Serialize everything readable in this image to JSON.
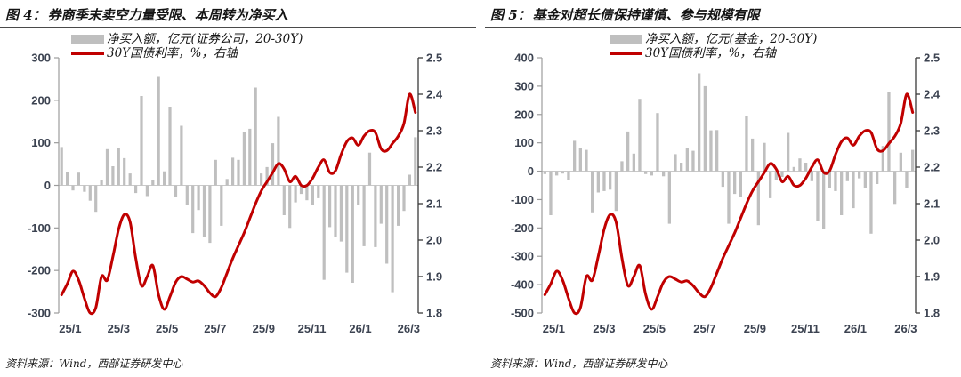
{
  "page": {
    "background": "#ffffff"
  },
  "chart_data": [
    {
      "id": "figure-4",
      "type": "bar+line",
      "title_prefix": "图 4：",
      "title": "券商季末卖空力量受限、本周转为净买入",
      "source": "资料来源：Wind，西部证券研发中心",
      "colors": {
        "bar": "#bfbfbf",
        "line": "#c00000",
        "tick_label": "#3c4351"
      },
      "legend": {
        "bar_label": "净买入额，亿元(证券公司，20-30Y)",
        "line_label": "30Y国债利率，%，右轴"
      },
      "x_tick_labels": [
        "25/1",
        "25/3",
        "25/5",
        "25/7",
        "25/9",
        "25/11",
        "26/1",
        "26/3"
      ],
      "left_axis": {
        "min": -300,
        "max": 300,
        "tick_labels": [
          "300",
          "200",
          "100",
          "0",
          "-100",
          "-200",
          "-300"
        ],
        "tick_values": [
          300,
          200,
          100,
          0,
          -100,
          -200,
          -300
        ]
      },
      "right_axis": {
        "min": 1.8,
        "max": 2.5,
        "tick_labels": [
          "2.5",
          "2.4",
          "2.3",
          "2.2",
          "2.1",
          "2.0",
          "1.9",
          "1.8"
        ],
        "tick_values": [
          2.5,
          2.4,
          2.3,
          2.2,
          2.1,
          2.0,
          1.9,
          1.8
        ]
      },
      "series": [
        {
          "name": "净买入额，亿元(证券公司，20-30Y)",
          "type": "bar",
          "axis": "left",
          "values": [
            90,
            31,
            -12,
            30,
            -15,
            -36,
            -62,
            13,
            85,
            45,
            88,
            64,
            28,
            -18,
            210,
            -25,
            12,
            255,
            33,
            185,
            -28,
            140,
            -45,
            -112,
            -58,
            -122,
            -135,
            60,
            -95,
            15,
            65,
            60,
            126,
            133,
            230,
            28,
            43,
            99,
            161,
            -70,
            -100,
            -40,
            -20,
            -35,
            -45,
            -30,
            -222,
            -98,
            -122,
            -132,
            -205,
            -229,
            -45,
            -143,
            77,
            -145,
            -90,
            -184,
            -251,
            -95,
            -60,
            25,
            113
          ]
        },
        {
          "name": "30Y国债利率，%，右轴",
          "type": "line",
          "axis": "right",
          "values": [
            1.85,
            1.88,
            1.915,
            1.89,
            1.84,
            1.8,
            1.815,
            1.9,
            1.89,
            1.955,
            2.03,
            2.07,
            2.05,
            1.95,
            1.875,
            1.9,
            1.93,
            1.85,
            1.81,
            1.845,
            1.885,
            1.9,
            1.893,
            1.885,
            1.888,
            1.875,
            1.855,
            1.845,
            1.87,
            1.91,
            1.95,
            1.985,
            2.02,
            2.06,
            2.1,
            2.135,
            2.16,
            2.185,
            2.21,
            2.195,
            2.16,
            2.175,
            2.15,
            2.15,
            2.17,
            2.2,
            2.22,
            2.185,
            2.19,
            2.235,
            2.27,
            2.28,
            2.26,
            2.285,
            2.3,
            2.295,
            2.25,
            2.245,
            2.265,
            2.285,
            2.32,
            2.4,
            2.35
          ]
        }
      ]
    },
    {
      "id": "figure-5",
      "type": "bar+line",
      "title_prefix": "图 5：",
      "title": "基金对超长债保持谨慎、参与规模有限",
      "source": "资料来源：Wind，西部证券研发中心",
      "colors": {
        "bar": "#bfbfbf",
        "line": "#c00000",
        "tick_label": "#3c4351"
      },
      "legend": {
        "bar_label": "净买入额，亿元(基金，20-30Y)",
        "line_label": "30Y国债利率，%，右轴"
      },
      "x_tick_labels": [
        "25/1",
        "25/3",
        "25/5",
        "25/7",
        "25/9",
        "25/11",
        "26/1",
        "26/3"
      ],
      "left_axis": {
        "min": -500,
        "max": 400,
        "tick_labels": [
          "400",
          "300",
          "200",
          "100",
          "0",
          "-100",
          "-200",
          "-300",
          "-400",
          "-500"
        ],
        "tick_values": [
          400,
          300,
          200,
          100,
          0,
          -100,
          -200,
          -300,
          -400,
          -500
        ]
      },
      "right_axis": {
        "min": 1.8,
        "max": 2.5,
        "tick_labels": [
          "2.5",
          "2.4",
          "2.3",
          "2.2",
          "2.1",
          "2.0",
          "1.9",
          "1.8"
        ],
        "tick_values": [
          2.5,
          2.4,
          2.3,
          2.2,
          2.1,
          2.0,
          1.9,
          1.8
        ]
      },
      "series": [
        {
          "name": "净买入额，亿元(基金，20-30Y)",
          "type": "bar",
          "axis": "left",
          "values": [
            -10,
            -155,
            -15,
            -8,
            -30,
            107,
            80,
            75,
            -145,
            -75,
            -70,
            -65,
            -140,
            35,
            140,
            62,
            255,
            -10,
            -15,
            205,
            -18,
            -185,
            60,
            30,
            80,
            72,
            345,
            300,
            144,
            145,
            -55,
            -185,
            -80,
            -90,
            193,
            115,
            -190,
            100,
            -95,
            -30,
            -20,
            135,
            15,
            45,
            30,
            -35,
            -175,
            -205,
            -60,
            -70,
            -155,
            -35,
            -130,
            -25,
            -60,
            -220,
            -45,
            89,
            280,
            -115,
            65,
            -60,
            75
          ]
        },
        {
          "name": "30Y国债利率，%，右轴",
          "type": "line",
          "axis": "right",
          "values": [
            1.85,
            1.88,
            1.915,
            1.89,
            1.84,
            1.8,
            1.815,
            1.9,
            1.89,
            1.955,
            2.03,
            2.07,
            2.05,
            1.95,
            1.875,
            1.9,
            1.93,
            1.85,
            1.81,
            1.845,
            1.885,
            1.9,
            1.893,
            1.885,
            1.888,
            1.875,
            1.855,
            1.845,
            1.87,
            1.91,
            1.95,
            1.985,
            2.02,
            2.06,
            2.1,
            2.135,
            2.16,
            2.185,
            2.21,
            2.195,
            2.16,
            2.175,
            2.15,
            2.15,
            2.17,
            2.2,
            2.22,
            2.185,
            2.19,
            2.235,
            2.27,
            2.28,
            2.26,
            2.285,
            2.3,
            2.295,
            2.25,
            2.245,
            2.265,
            2.285,
            2.32,
            2.4,
            2.35
          ]
        }
      ]
    }
  ]
}
